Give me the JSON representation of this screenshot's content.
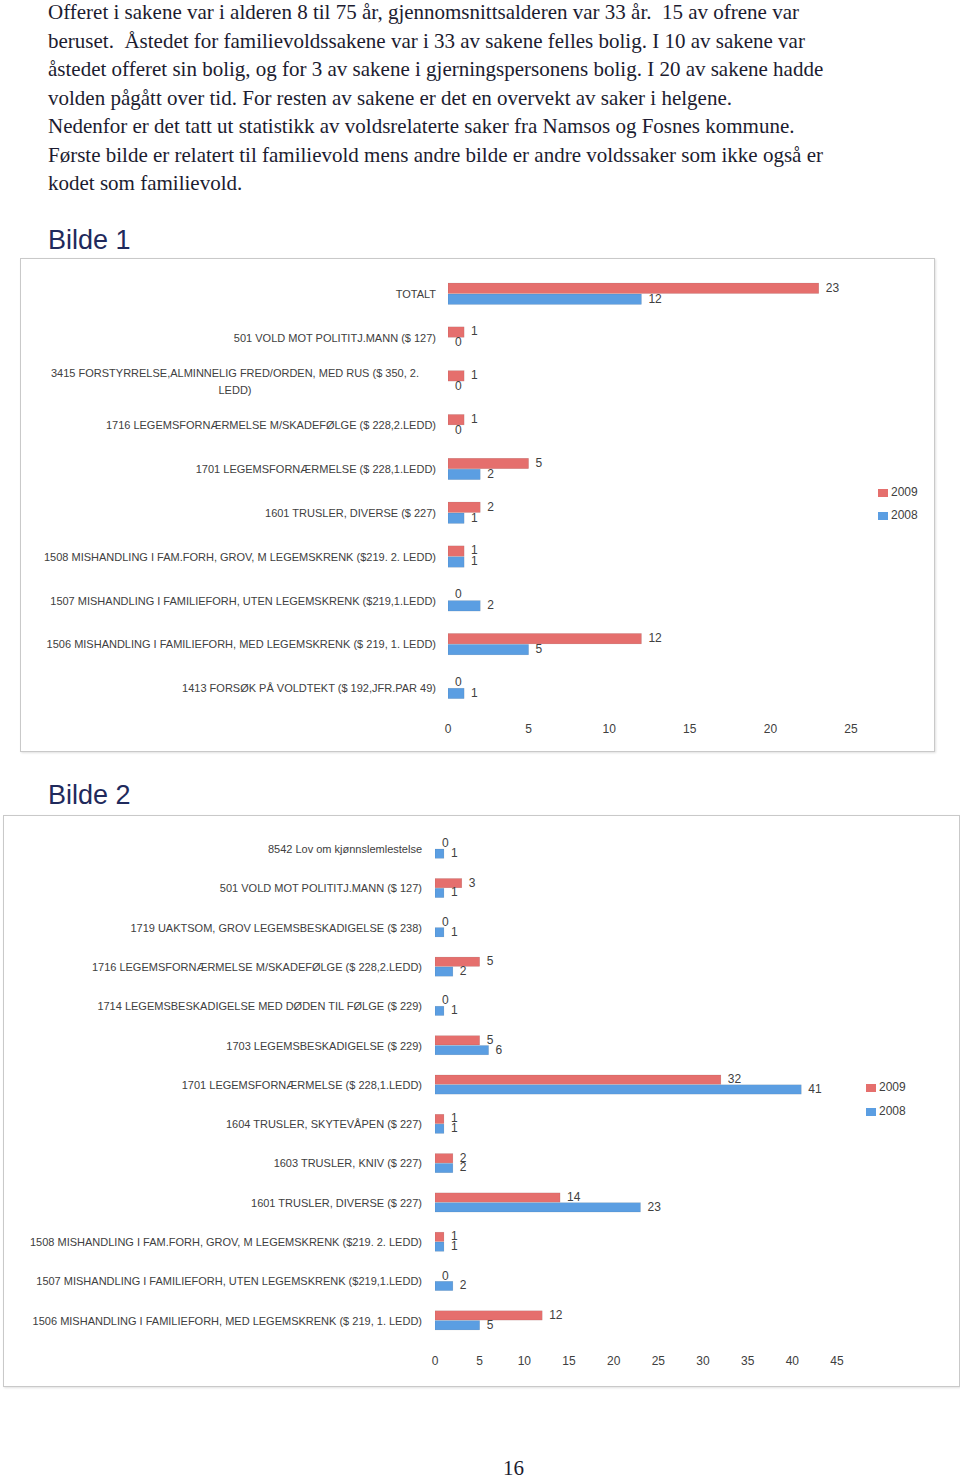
{
  "text": {
    "paragraph_lines": [
      "Offeret i sakene var i alderen 8 til 75 år, gjennomsnittsalderen var 33 år.  15 av ofrene var",
      "beruset.  Åstedet for familievoldssakene var i 33 av sakene felles bolig. I 10 av sakene var",
      "åstedet offeret sin bolig, og for 3 av sakene i gjerningspersonens bolig. I 20 av sakene hadde",
      "volden pågått over tid. For resten av sakene er det en overvekt av saker i helgene.",
      "Nedenfor er det tatt ut statistikk av voldsrelaterte saker fra Namsos og Fosnes kommune.",
      "Første bilde er relatert til familievold mens andre bilde er andre voldssaker som ikke også er",
      "kodet som familievold."
    ],
    "page_number": "16"
  },
  "chart_data": [
    {
      "type": "bar",
      "title": "Bilde 1",
      "orientation": "horizontal",
      "data_labels": true,
      "grid": false,
      "legend": "right",
      "categories": [
        "TOTALT",
        "501 VOLD MOT POLITITJ.MANN ($ 127)",
        "3415 FORSTYRRELSE,ALMINNELIG FRED/ORDEN, MED RUS ($ 350, 2. LEDD)",
        "1716 LEGEMSFORNÆRMELSE M/SKADEFØLGE ($ 228,2.LEDD)",
        "1701 LEGEMSFORNÆRMELSE ($ 228,1.LEDD)",
        "1601 TRUSLER, DIVERSE ($ 227)",
        "1508 MISHANDLING I FAM.FORH, GROV, M LEGEMSKRENK ($219. 2. LEDD)",
        "1507 MISHANDLING I FAMILIEFORH, UTEN LEGEMSKRENK ($219,1.LEDD)",
        "1506 MISHANDLING I FAMILIEFORH, MED LEGEMSKRENK ($ 219, 1. LEDD)",
        "1413 FORSØK PÅ VOLDTEKT ($ 192,JFR.PAR 49)"
      ],
      "series": [
        {
          "name": "2009",
          "color": "#e56f6d",
          "values": [
            23,
            1,
            1,
            1,
            5,
            2,
            1,
            0,
            12,
            0
          ]
        },
        {
          "name": "2008",
          "color": "#5b9ee2",
          "values": [
            12,
            0,
            0,
            0,
            2,
            1,
            1,
            2,
            5,
            1
          ]
        }
      ],
      "xlim": [
        0,
        25
      ],
      "xticks": [
        0,
        5,
        10,
        15,
        20,
        25
      ]
    },
    {
      "type": "bar",
      "title": "Bilde 2",
      "orientation": "horizontal",
      "data_labels": true,
      "grid": false,
      "legend": "right",
      "categories": [
        "8542 Lov om kjønnslemlestelse",
        "501 VOLD MOT POLITITJ.MANN ($ 127)",
        "1719 UAKTSOM, GROV LEGEMSBESKADIGELSE ($ 238)",
        "1716 LEGEMSFORNÆRMELSE M/SKADEFØLGE ($ 228,2.LEDD)",
        "1714 LEGEMSBESKADIGELSE MED DØDEN TIL FØLGE ($ 229)",
        "1703 LEGEMSBESKADIGELSE ($ 229)",
        "1701 LEGEMSFORNÆRMELSE ($ 228,1.LEDD)",
        "1604 TRUSLER, SKYTEVÅPEN ($ 227)",
        "1603 TRUSLER, KNIV ($ 227)",
        "1601 TRUSLER, DIVERSE ($ 227)",
        "1508 MISHANDLING I FAM.FORH, GROV, M LEGEMSKRENK ($219. 2. LEDD)",
        "1507 MISHANDLING I FAMILIEFORH, UTEN LEGEMSKRENK ($219,1.LEDD)",
        "1506 MISHANDLING I FAMILIEFORH, MED LEGEMSKRENK ($ 219, 1. LEDD)"
      ],
      "series": [
        {
          "name": "2009",
          "color": "#e56f6d",
          "values": [
            0,
            3,
            0,
            5,
            0,
            5,
            32,
            1,
            2,
            14,
            1,
            0,
            12
          ]
        },
        {
          "name": "2008",
          "color": "#5b9ee2",
          "values": [
            1,
            1,
            1,
            2,
            1,
            6,
            41,
            1,
            2,
            23,
            1,
            2,
            5
          ]
        }
      ],
      "xlim": [
        0,
        45
      ],
      "xticks": [
        0,
        5,
        10,
        15,
        20,
        25,
        30,
        35,
        40,
        45
      ]
    }
  ]
}
